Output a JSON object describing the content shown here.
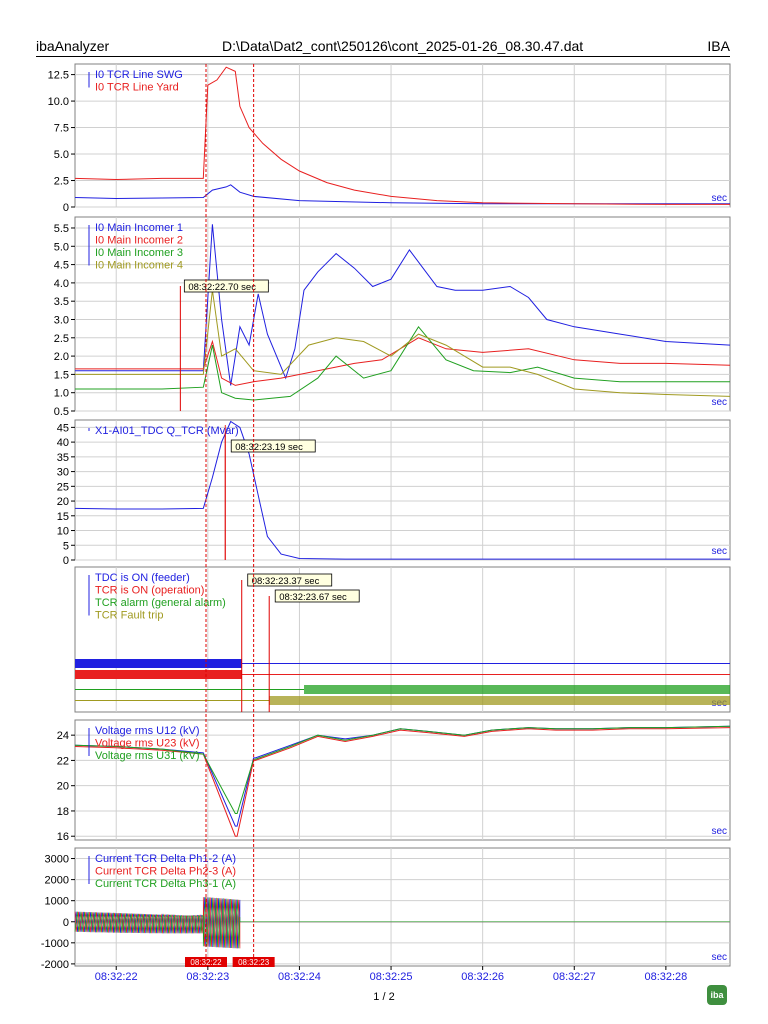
{
  "header": {
    "app": "ibaAnalyzer",
    "file": "D:\\Data\\Dat2_cont\\250126\\cont_2025-01-26_08.30.47.dat",
    "brand": "IBA"
  },
  "footer": {
    "page": "1 / 2",
    "logo_text": "iba"
  },
  "colors": {
    "blue": "#2020e0",
    "red": "#e82020",
    "green": "#20a020",
    "olive": "#a09a20",
    "grid": "#d0d0d0",
    "marker": "#e00000"
  },
  "chart_data": {
    "type": "line",
    "x_axis": {
      "unit_label": "sec",
      "ticks": [
        "08:32:22",
        "08:32:23",
        "08:32:24",
        "08:32:25",
        "08:32:26",
        "08:32:27",
        "08:32:28"
      ],
      "tick_seconds": [
        22,
        23,
        24,
        25,
        26,
        27,
        28
      ],
      "range_seconds": [
        21.55,
        28.7
      ]
    },
    "markers": [
      {
        "label": "08:32:22",
        "second": 22.98
      },
      {
        "label": "08:32:23",
        "second": 23.5
      }
    ],
    "panels": [
      {
        "id": "p1",
        "yticks": [
          "12.5",
          "10.0",
          "7.5",
          "5.0",
          "2.5",
          "0"
        ],
        "ytick_values": [
          12.5,
          10,
          7.5,
          5,
          2.5,
          0
        ],
        "ylim": [
          0,
          13.5
        ],
        "unit_label": "sec",
        "series": [
          {
            "name": "I0 TCR Line SWG",
            "color": "#2020e0",
            "x": [
              21.55,
              22,
              22.5,
              22.95,
              23.05,
              23.2,
              23.25,
              23.35,
              23.5,
              24,
              25,
              26,
              27,
              28,
              28.7
            ],
            "y": [
              0.9,
              0.8,
              0.85,
              0.9,
              1.6,
              1.9,
              2.1,
              1.4,
              1.0,
              0.6,
              0.4,
              0.3,
              0.3,
              0.3,
              0.3
            ]
          },
          {
            "name": "I0 TCR Line Yard",
            "color": "#e82020",
            "x": [
              21.55,
              22,
              22.5,
              22.95,
              23.0,
              23.1,
              23.2,
              23.3,
              23.35,
              23.45,
              23.6,
              23.8,
              24.0,
              24.3,
              24.6,
              25.0,
              25.5,
              26,
              27,
              28,
              28.7
            ],
            "y": [
              2.7,
              2.6,
              2.7,
              2.7,
              11.5,
              12.0,
              13.2,
              12.8,
              9.5,
              7.5,
              6.0,
              4.5,
              3.4,
              2.3,
              1.6,
              1.0,
              0.6,
              0.4,
              0.3,
              0.25,
              0.25
            ]
          }
        ]
      },
      {
        "id": "p2",
        "yticks": [
          "5.5",
          "5.0",
          "4.5",
          "4.0",
          "3.5",
          "3.0",
          "2.5",
          "2.0",
          "1.5",
          "1.0",
          "0.5"
        ],
        "ytick_values": [
          5.5,
          5,
          4.5,
          4,
          3.5,
          3,
          2.5,
          2,
          1.5,
          1,
          0.5
        ],
        "ylim": [
          0.5,
          5.8
        ],
        "unit_label": "sec",
        "annotations": [
          {
            "label": "08:32:22.70 sec",
            "second": 22.7,
            "y": 3.85
          }
        ],
        "series": [
          {
            "name": "I0 Main Incomer 1",
            "color": "#2020e0",
            "x": [
              21.55,
              22.5,
              22.95,
              23.05,
              23.15,
              23.25,
              23.35,
              23.45,
              23.55,
              23.65,
              23.85,
              23.95,
              24.05,
              24.2,
              24.4,
              24.6,
              24.8,
              25.0,
              25.2,
              25.35,
              25.5,
              25.7,
              26.0,
              26.3,
              26.5,
              26.7,
              27.0,
              27.5,
              28.0,
              28.7
            ],
            "y": [
              1.6,
              1.6,
              1.6,
              5.6,
              3.0,
              1.2,
              2.8,
              2.3,
              3.7,
              2.6,
              1.4,
              2.2,
              3.8,
              4.3,
              4.8,
              4.4,
              3.9,
              4.1,
              4.9,
              4.4,
              3.9,
              3.8,
              3.8,
              3.9,
              3.6,
              3.0,
              2.8,
              2.6,
              2.4,
              2.3
            ]
          },
          {
            "name": "I0 Main Incomer 2",
            "color": "#e82020",
            "x": [
              21.55,
              22.5,
              22.95,
              23.05,
              23.15,
              23.3,
              23.5,
              23.8,
              24.2,
              24.6,
              24.9,
              25.3,
              25.6,
              26.0,
              26.5,
              27.0,
              27.5,
              28.0,
              28.7
            ],
            "y": [
              1.65,
              1.65,
              1.65,
              2.4,
              1.4,
              1.2,
              1.3,
              1.4,
              1.6,
              1.8,
              1.9,
              2.5,
              2.2,
              2.1,
              2.2,
              1.9,
              1.8,
              1.8,
              1.75
            ]
          },
          {
            "name": "I0 Main Incomer 3",
            "color": "#20a020",
            "x": [
              21.55,
              22.5,
              22.95,
              23.05,
              23.15,
              23.3,
              23.5,
              23.9,
              24.2,
              24.4,
              24.7,
              25.0,
              25.3,
              25.6,
              25.9,
              26.3,
              26.6,
              27.0,
              27.5,
              28.0,
              28.7
            ],
            "y": [
              1.1,
              1.1,
              1.15,
              2.3,
              1.0,
              0.85,
              0.8,
              0.9,
              1.4,
              2.0,
              1.4,
              1.6,
              2.8,
              1.9,
              1.6,
              1.55,
              1.7,
              1.4,
              1.3,
              1.3,
              1.3
            ]
          },
          {
            "name": "I0 Main Incomer 4",
            "color": "#a09a20",
            "x": [
              21.55,
              22.5,
              22.95,
              23.05,
              23.15,
              23.3,
              23.5,
              23.8,
              24.1,
              24.4,
              24.7,
              25.0,
              25.3,
              25.6,
              26.0,
              26.3,
              26.6,
              27.0,
              27.5,
              28.0,
              28.7
            ],
            "y": [
              1.5,
              1.5,
              1.5,
              3.8,
              2.0,
              2.2,
              1.6,
              1.5,
              2.3,
              2.5,
              2.4,
              2.0,
              2.6,
              2.3,
              1.7,
              1.7,
              1.5,
              1.1,
              1.0,
              0.95,
              0.9
            ]
          }
        ]
      },
      {
        "id": "p3",
        "yticks": [
          "45",
          "40",
          "35",
          "30",
          "25",
          "20",
          "15",
          "10",
          "5",
          "0"
        ],
        "ytick_values": [
          45,
          40,
          35,
          30,
          25,
          20,
          15,
          10,
          5,
          0
        ],
        "ylim": [
          0,
          47.5
        ],
        "unit_label": "sec",
        "annotations": [
          {
            "label": "08:32:23.19 sec",
            "second": 23.19,
            "y": 43
          }
        ],
        "series": [
          {
            "name": "X1-AI01_TDC Q_TCR (Mvar)",
            "color": "#2020e0",
            "x": [
              21.55,
              22.0,
              22.5,
              22.95,
              23.05,
              23.15,
              23.25,
              23.35,
              23.45,
              23.55,
              23.65,
              23.8,
              24.0,
              24.5,
              25,
              26,
              27,
              28,
              28.7
            ],
            "y": [
              17.5,
              17.3,
              17.3,
              17.5,
              28,
              40,
              47,
              45,
              36,
              22,
              8,
              2,
              0.5,
              0.3,
              0.3,
              0.3,
              0.3,
              0.3,
              0.3
            ]
          }
        ]
      },
      {
        "id": "p4",
        "unit_label": "sec",
        "annotations": [
          {
            "label": "08:32:23.37 sec",
            "second": 23.37
          },
          {
            "label": "08:32:23.67 sec",
            "second": 23.67
          }
        ],
        "series": [
          {
            "name": "TDC is ON (feeder)",
            "color": "#2020e0",
            "switch_at": 23.37,
            "state_before": "ON",
            "state_after": "OFF"
          },
          {
            "name": "TCR is ON (operation)",
            "color": "#e82020",
            "switch_at": 23.37,
            "state_before": "ON",
            "state_after": "OFF"
          },
          {
            "name": "TCR alarm (general alarm)",
            "color": "#20a020",
            "switch_at": 24.05,
            "state_before": "OFF",
            "state_after": "ON"
          },
          {
            "name": "TCR Fault trip",
            "color": "#a09a20",
            "switch_at": 23.67,
            "state_before": "OFF",
            "state_after": "ON"
          }
        ]
      },
      {
        "id": "p5",
        "yticks": [
          "24",
          "22",
          "20",
          "18",
          "16"
        ],
        "ytick_values": [
          24,
          22,
          20,
          18,
          16
        ],
        "ylim": [
          15.7,
          25.2
        ],
        "unit_label": "sec",
        "series": [
          {
            "name": "Voltage rms U12 (kV)",
            "color": "#2020e0",
            "x": [
              21.55,
              22.0,
              22.5,
              22.95,
              23.3,
              23.32,
              23.5,
              23.52,
              23.9,
              24.2,
              24.5,
              24.8,
              25.1,
              25.4,
              25.8,
              26.1,
              26.5,
              26.8,
              27.2,
              27.6,
              28.0,
              28.7
            ],
            "y": [
              23.2,
              23.1,
              22.9,
              22.6,
              16.8,
              16.8,
              22.2,
              22.2,
              23.2,
              24.0,
              23.7,
              24.0,
              24.5,
              24.3,
              24.0,
              24.4,
              24.6,
              24.5,
              24.5,
              24.6,
              24.6,
              24.7
            ]
          },
          {
            "name": "Voltage rms U23 (kV)",
            "color": "#e82020",
            "x": [
              21.55,
              22.0,
              22.5,
              22.95,
              23.3,
              23.32,
              23.5,
              23.52,
              23.9,
              24.2,
              24.5,
              24.8,
              25.1,
              25.4,
              25.8,
              26.1,
              26.5,
              26.8,
              27.2,
              27.6,
              28.0,
              28.7
            ],
            "y": [
              23.1,
              23.0,
              22.8,
              22.5,
              16.0,
              16.0,
              22.0,
              22.0,
              23.0,
              23.9,
              23.5,
              23.9,
              24.4,
              24.2,
              23.9,
              24.3,
              24.5,
              24.4,
              24.4,
              24.5,
              24.5,
              24.6
            ]
          },
          {
            "name": "Voltage rms U31 (kV)",
            "color": "#20a020",
            "x": [
              21.55,
              22.0,
              22.5,
              22.95,
              23.3,
              23.32,
              23.5,
              23.52,
              23.9,
              24.2,
              24.5,
              24.8,
              25.1,
              25.4,
              25.8,
              26.1,
              26.5,
              26.8,
              27.2,
              27.6,
              28.0,
              28.7
            ],
            "y": [
              23.2,
              23.1,
              22.9,
              22.5,
              17.8,
              17.8,
              22.1,
              22.1,
              23.1,
              24.0,
              23.6,
              24.0,
              24.5,
              24.3,
              24.0,
              24.4,
              24.6,
              24.5,
              24.5,
              24.6,
              24.6,
              24.7
            ]
          }
        ]
      },
      {
        "id": "p6",
        "yticks": [
          "3000",
          "2000",
          "1000",
          "0",
          "-1000",
          "-2000"
        ],
        "ytick_values": [
          3000,
          2000,
          1000,
          0,
          -1000,
          -2000
        ],
        "ylim": [
          -2100,
          3500
        ],
        "unit_label": "sec",
        "series": [
          {
            "name": "Current TCR Delta Ph1-2 (A)",
            "color": "#2020e0",
            "envelope": [
              {
                "from": 21.55,
                "to": 22.95,
                "amp": 550
              },
              {
                "from": 22.95,
                "to": 23.35,
                "amp": 1350
              }
            ],
            "after": 0
          },
          {
            "name": "Current TCR Delta Ph2-3 (A)",
            "color": "#e82020",
            "envelope": [
              {
                "from": 21.55,
                "to": 22.95,
                "amp": 550
              },
              {
                "from": 22.95,
                "to": 23.35,
                "amp": 1350
              }
            ],
            "after": 0
          },
          {
            "name": "Current TCR Delta Ph3-1 (A)",
            "color": "#20a020",
            "envelope": [
              {
                "from": 21.55,
                "to": 22.95,
                "amp": 550
              },
              {
                "from": 22.95,
                "to": 23.35,
                "amp": 1350
              }
            ],
            "after": 0
          }
        ]
      }
    ]
  }
}
